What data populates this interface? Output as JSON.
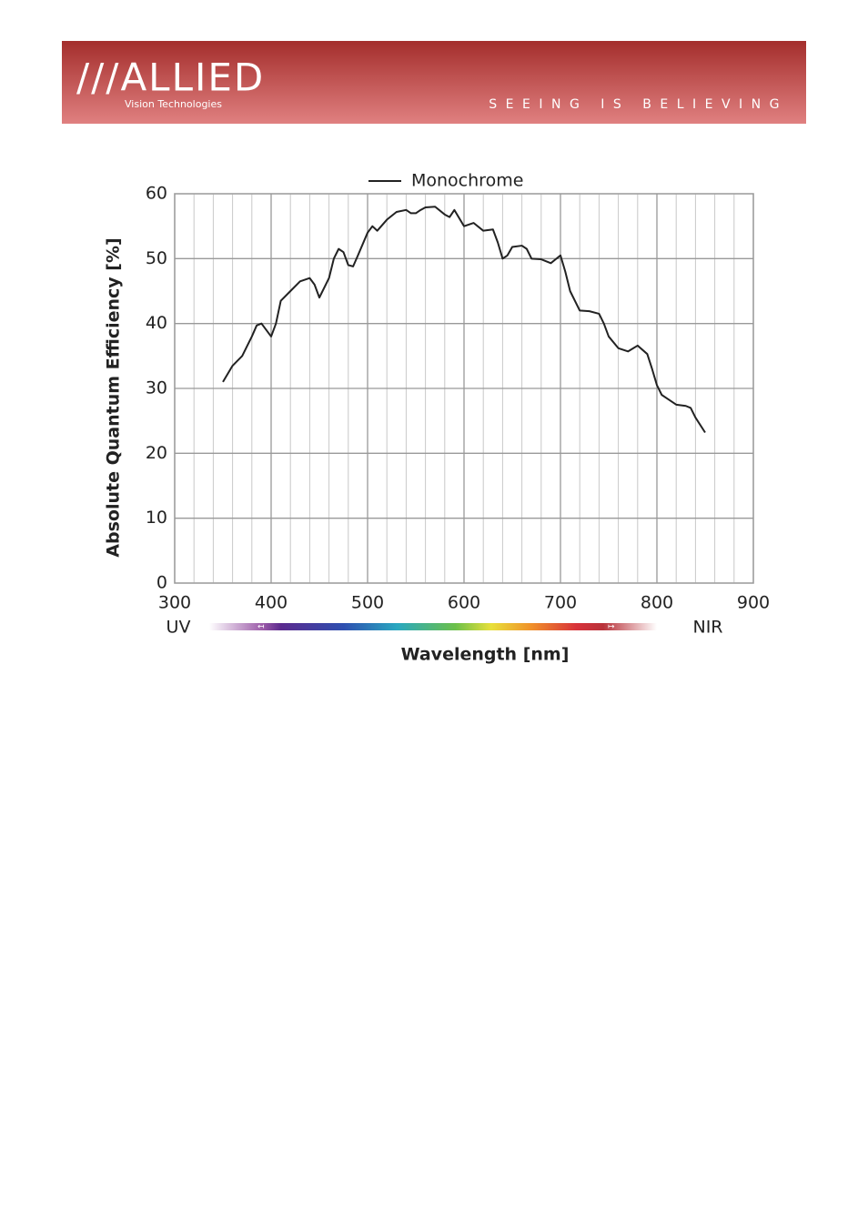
{
  "header": {
    "logo": "///ALLIED",
    "logo_subtitle": "Vision Technologies",
    "tagline": "SEEING IS BELIEVING"
  },
  "chart_data": {
    "type": "line",
    "legend_label": "Monochrome",
    "x_label": "Wavelength [nm]",
    "y_label": "Absolute Quantum Efficiency [%]",
    "uv_label": "UV",
    "nir_label": "NIR",
    "x": [
      350,
      360,
      370,
      380,
      385,
      390,
      395,
      400,
      405,
      410,
      420,
      430,
      440,
      445,
      450,
      460,
      465,
      470,
      475,
      480,
      485,
      490,
      500,
      505,
      510,
      520,
      530,
      540,
      545,
      550,
      555,
      560,
      570,
      580,
      585,
      590,
      600,
      610,
      620,
      630,
      635,
      640,
      645,
      650,
      660,
      665,
      670,
      680,
      690,
      700,
      705,
      710,
      720,
      730,
      740,
      745,
      750,
      760,
      770,
      780,
      790,
      795,
      800,
      805,
      810,
      820,
      830,
      835,
      840,
      850
    ],
    "series": [
      {
        "name": "Monochrome",
        "color": "#222222",
        "values": [
          31,
          33.5,
          35,
          38,
          39.7,
          40,
          39,
          38,
          40,
          43.5,
          45,
          46.5,
          47,
          46,
          44,
          47,
          50,
          51.5,
          51,
          49,
          48.8,
          50.5,
          54,
          55,
          54.3,
          56,
          57.2,
          57.5,
          57,
          57,
          57.5,
          57.9,
          58,
          56.8,
          56.4,
          57.5,
          55,
          55.5,
          54.3,
          54.5,
          52.5,
          50,
          50.5,
          51.8,
          52,
          51.5,
          50,
          49.9,
          49.3,
          50.5,
          48,
          45,
          42,
          41.9,
          41.5,
          40,
          38,
          36.2,
          35.7,
          36.6,
          35.3,
          33,
          30.5,
          29,
          28.5,
          27.5,
          27.3,
          27,
          25.5,
          23.2
        ]
      }
    ],
    "xlim": [
      300,
      900
    ],
    "xticks": [
      300,
      400,
      500,
      600,
      700,
      800,
      900
    ],
    "xminorticks": [
      320,
      340,
      360,
      380,
      420,
      440,
      460,
      480,
      520,
      540,
      560,
      580,
      620,
      640,
      660,
      680,
      720,
      740,
      760,
      780,
      820,
      840,
      860,
      880
    ],
    "ylim": [
      0,
      60
    ],
    "yticks": [
      0,
      10,
      20,
      30,
      40,
      50,
      60
    ],
    "grid": true
  }
}
